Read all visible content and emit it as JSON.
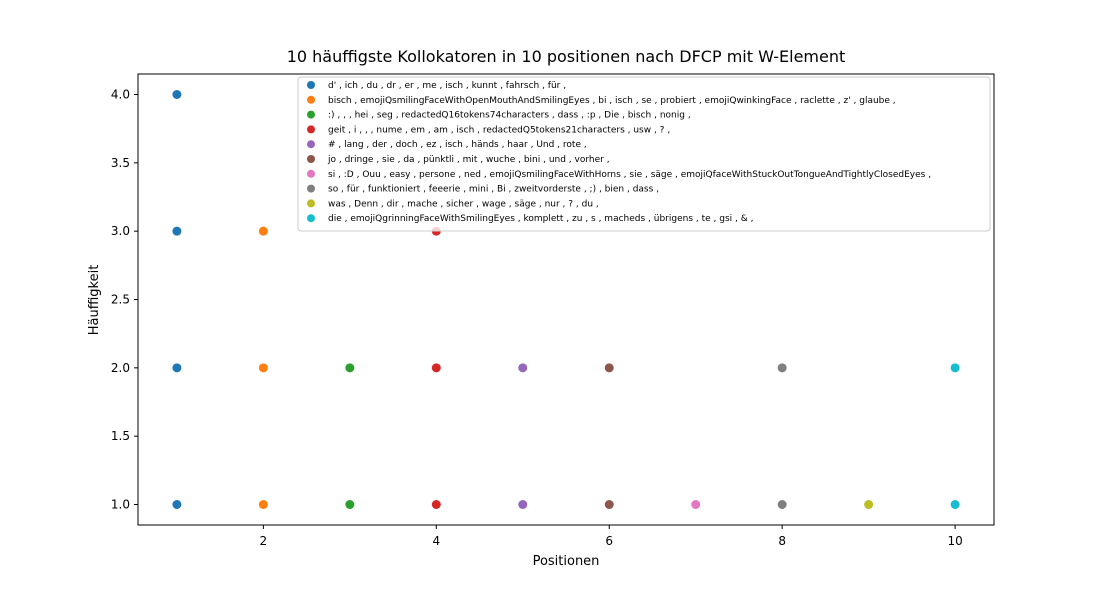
{
  "chart_data": {
    "type": "scatter",
    "title": "10 häuffigste Kollokatoren in 10 positionen nach DFCP mit W-Element",
    "xlabel": "Positionen",
    "ylabel": "Häuffigkeit",
    "xlim": [
      0.55,
      10.45
    ],
    "ylim": [
      0.85,
      4.15
    ],
    "xticks": [
      "2",
      "4",
      "6",
      "8",
      "10"
    ],
    "yticks": [
      "1.0",
      "1.5",
      "2.0",
      "2.5",
      "3.0",
      "3.5",
      "4.0"
    ],
    "legend_position": "top-right",
    "series": [
      {
        "name": "d' , ich , du , dr , er , me , isch , kunnt , fahrsch , für ,",
        "color": "#1f77b4",
        "points": [
          [
            1,
            4
          ],
          [
            1,
            3
          ],
          [
            1,
            2
          ],
          [
            1,
            1
          ]
        ]
      },
      {
        "name": "bisch , emojiQsmilingFaceWithOpenMouthAndSmilingEyes , bi , isch , se , probiert , emojiQwinkingFace , raclette , z' , glaube ,",
        "color": "#ff7f0e",
        "points": [
          [
            2,
            3
          ],
          [
            2,
            2
          ],
          [
            2,
            1
          ]
        ]
      },
      {
        "name": ":) , , , hei , seg , redactedQ16tokens74characters , dass , :p , Die , bisch , nonig ,",
        "color": "#2ca02c",
        "points": [
          [
            3,
            2
          ],
          [
            3,
            1
          ]
        ]
      },
      {
        "name": "geit , i , , , nume , em , am , isch , redactedQ5tokens21characters , usw , ? ,",
        "color": "#d62728",
        "points": [
          [
            4,
            3
          ],
          [
            4,
            2
          ],
          [
            4,
            1
          ]
        ]
      },
      {
        "name": "# , lang , der , doch , ez , isch , händs , haar , Und , rote ,",
        "color": "#9467bd",
        "points": [
          [
            5,
            2
          ],
          [
            5,
            1
          ]
        ]
      },
      {
        "name": "jo , dringe , sie , da , pünktli , mit , wuche , bini , und , vorher ,",
        "color": "#8c564b",
        "points": [
          [
            6,
            2
          ],
          [
            6,
            1
          ]
        ]
      },
      {
        "name": "si , :D , Ouu , easy , persone , ned , emojiQsmilingFaceWithHorns , sie , säge , emojiQfaceWithStuckOutTongueAndTightlyClosedEyes ,",
        "color": "#e377c2",
        "points": [
          [
            7,
            1
          ]
        ]
      },
      {
        "name": "so , für , funktioniert , feeerie , mini , Bi , zweitvorderste , ;) , bien , dass ,",
        "color": "#7f7f7f",
        "points": [
          [
            8,
            2
          ],
          [
            8,
            1
          ]
        ]
      },
      {
        "name": "was , Denn , dir , mache , sicher , wage , säge , nur , ? , du ,",
        "color": "#bcbd22",
        "points": [
          [
            9,
            1
          ]
        ]
      },
      {
        "name": "die , emojiQgrinningFaceWithSmilingEyes , komplett , zu , s , macheds , übrigens , te , gsi , & ,",
        "color": "#17becf",
        "points": [
          [
            10,
            2
          ],
          [
            10,
            1
          ]
        ]
      }
    ]
  }
}
